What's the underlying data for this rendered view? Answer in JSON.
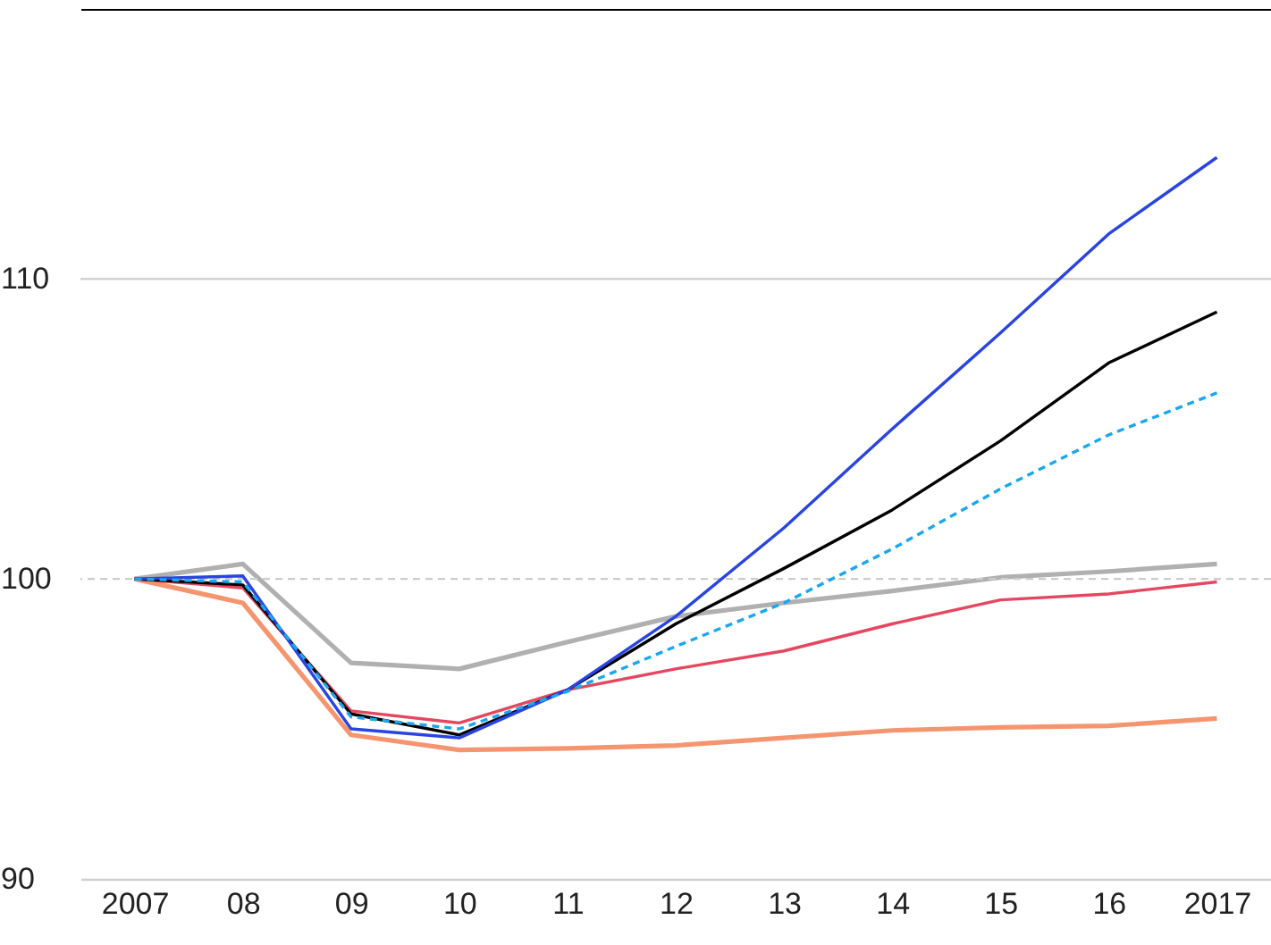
{
  "chart_data": {
    "type": "line",
    "categories": [
      "2007",
      "08",
      "09",
      "10",
      "11",
      "12",
      "13",
      "14",
      "15",
      "16",
      "2017"
    ],
    "ylim": [
      90,
      119
    ],
    "yticks": [
      90,
      100,
      110
    ],
    "ref_lines": [
      {
        "axis": "y",
        "value": 100,
        "line_style": "dashed",
        "color": "#cccccc"
      },
      {
        "axis": "y",
        "value": 110,
        "line_style": "solid",
        "color": "#d0d0d0"
      }
    ],
    "series": [
      {
        "color": "#b0b0b0",
        "values": [
          100,
          100.5,
          97.2,
          97.0,
          97.9,
          98.75,
          99.2,
          99.6,
          100.05,
          100.25,
          100.5
        ]
      },
      {
        "color": "#f5956f",
        "values": [
          100,
          99.2,
          94.8,
          94.3,
          94.35,
          94.45,
          94.7,
          94.95,
          95.05,
          95.1,
          95.35
        ]
      },
      {
        "color": "#e5475f",
        "values": [
          100,
          99.7,
          95.6,
          95.2,
          96.3,
          97.0,
          97.6,
          98.5,
          99.3,
          99.5,
          99.9
        ]
      },
      {
        "color": "#000000",
        "values": [
          100,
          99.8,
          95.5,
          94.8,
          96.3,
          98.5,
          100.35,
          102.3,
          104.6,
          107.2,
          108.9
        ]
      },
      {
        "color": "#2944e0",
        "values": [
          100,
          100.1,
          95.0,
          94.7,
          96.3,
          98.75,
          101.7,
          105.0,
          108.2,
          111.5,
          114.05
        ]
      },
      {
        "color": "#1aa7ee",
        "line_style": "dashed",
        "values": [
          100,
          99.9,
          95.4,
          95.0,
          96.25,
          97.75,
          99.2,
          101.0,
          103.0,
          104.8,
          106.2
        ]
      }
    ]
  }
}
